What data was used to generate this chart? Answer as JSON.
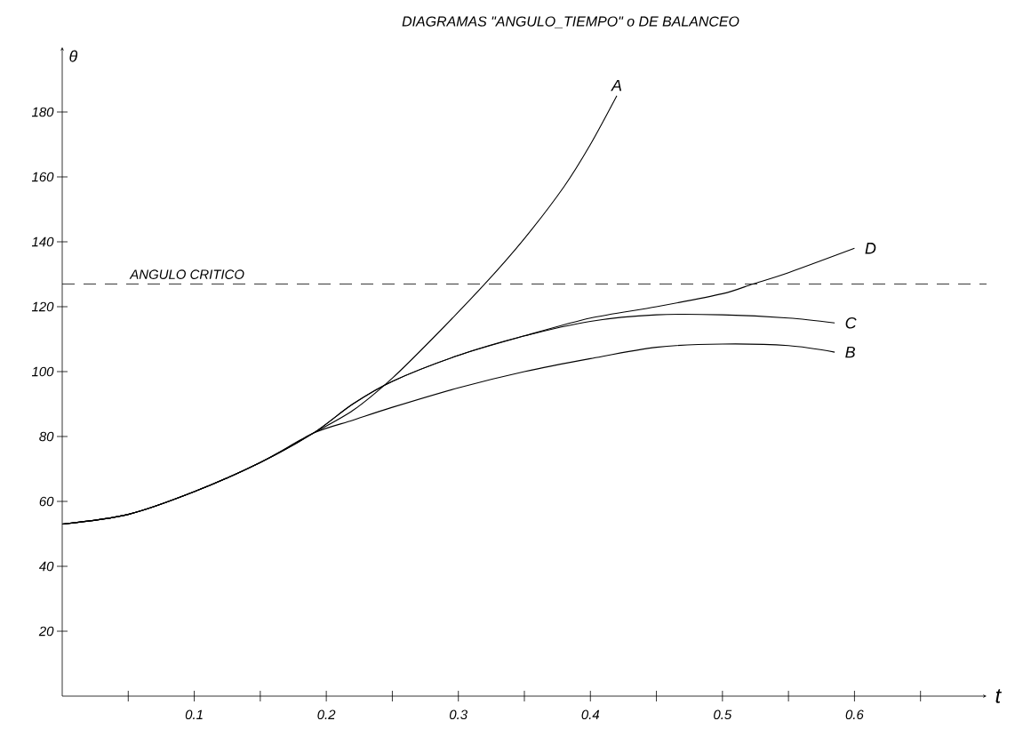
{
  "chart_data": {
    "type": "line",
    "title": "DIAGRAMAS \"ANGULO_TIEMPO\" o DE BALANCEO",
    "xlabel": "t",
    "ylabel": "θ",
    "xlim": [
      0,
      0.7
    ],
    "ylim": [
      0,
      200
    ],
    "xticks": [
      {
        "value": 0.05,
        "label": null
      },
      0.1,
      {
        "value": 0.15,
        "label": null
      },
      0.2,
      {
        "value": 0.25,
        "label": null
      },
      0.3,
      {
        "value": 0.35,
        "label": null
      },
      0.4,
      {
        "value": 0.45,
        "label": null
      },
      0.5,
      {
        "value": 0.55,
        "label": null
      },
      0.6,
      {
        "value": 0.65,
        "label": null
      }
    ],
    "yticks": [
      20,
      40,
      60,
      80,
      100,
      120,
      140,
      160,
      180
    ],
    "series": [
      {
        "name": "A",
        "color": "#000000",
        "x": [
          0,
          0.05,
          0.1,
          0.15,
          0.19,
          0.22,
          0.25,
          0.28,
          0.32,
          0.35,
          0.38,
          0.4,
          0.42
        ],
        "values": [
          53,
          56,
          63,
          72,
          81,
          88,
          98,
          110,
          127,
          141,
          157,
          170,
          185
        ]
      },
      {
        "name": "D",
        "color": "#000000",
        "x": [
          0,
          0.05,
          0.1,
          0.15,
          0.19,
          0.22,
          0.25,
          0.3,
          0.35,
          0.4,
          0.45,
          0.5,
          0.523,
          0.55,
          0.6
        ],
        "values": [
          53,
          56,
          63,
          72,
          81,
          90,
          97,
          105,
          111,
          116.5,
          120,
          124,
          127,
          130.5,
          138
        ]
      },
      {
        "name": "C",
        "color": "#000000",
        "x": [
          0,
          0.05,
          0.1,
          0.15,
          0.19,
          0.22,
          0.25,
          0.3,
          0.35,
          0.4,
          0.45,
          0.5,
          0.55,
          0.585
        ],
        "values": [
          53,
          56,
          63,
          72,
          81,
          90,
          97,
          105,
          111,
          115.5,
          117.5,
          117.5,
          116.5,
          115
        ]
      },
      {
        "name": "B",
        "color": "#000000",
        "x": [
          0,
          0.05,
          0.1,
          0.15,
          0.19,
          0.22,
          0.25,
          0.3,
          0.35,
          0.4,
          0.45,
          0.5,
          0.55,
          0.585
        ],
        "values": [
          53,
          56,
          63,
          72,
          81,
          85,
          89,
          95,
          100,
          104,
          107.5,
          108.5,
          108,
          106
        ]
      }
    ],
    "ref_lines": [
      {
        "axis": "y",
        "value": 127,
        "label": "ANGULO CRITICO",
        "line_style": "dashed"
      }
    ],
    "marker": "none",
    "line_style": "solid",
    "grid": false,
    "legend": false
  }
}
